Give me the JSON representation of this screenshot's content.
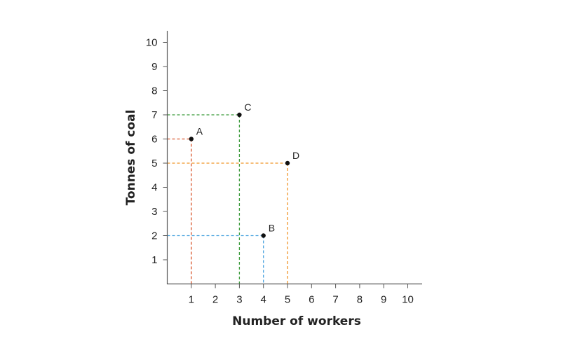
{
  "chart_data": {
    "type": "scatter",
    "title": "",
    "xlabel": "Number of workers",
    "ylabel": "Tonnes of coal",
    "xlim": [
      0,
      10
    ],
    "ylim": [
      0,
      10
    ],
    "x_ticks": [
      1,
      2,
      3,
      4,
      5,
      6,
      7,
      8,
      9,
      10
    ],
    "y_ticks": [
      1,
      2,
      3,
      4,
      5,
      6,
      7,
      8,
      9,
      10
    ],
    "grid": false,
    "points": [
      {
        "label": "A",
        "x": 1,
        "y": 6,
        "color": "#d9542b"
      },
      {
        "label": "B",
        "x": 4,
        "y": 2,
        "color": "#4aa3df"
      },
      {
        "label": "C",
        "x": 3,
        "y": 7,
        "color": "#3a9a3a"
      },
      {
        "label": "D",
        "x": 5,
        "y": 5,
        "color": "#f0962a"
      }
    ],
    "guide_lines": "dashed lines from each point to both axes",
    "axis_color": "#555555",
    "point_color": "#111111"
  }
}
